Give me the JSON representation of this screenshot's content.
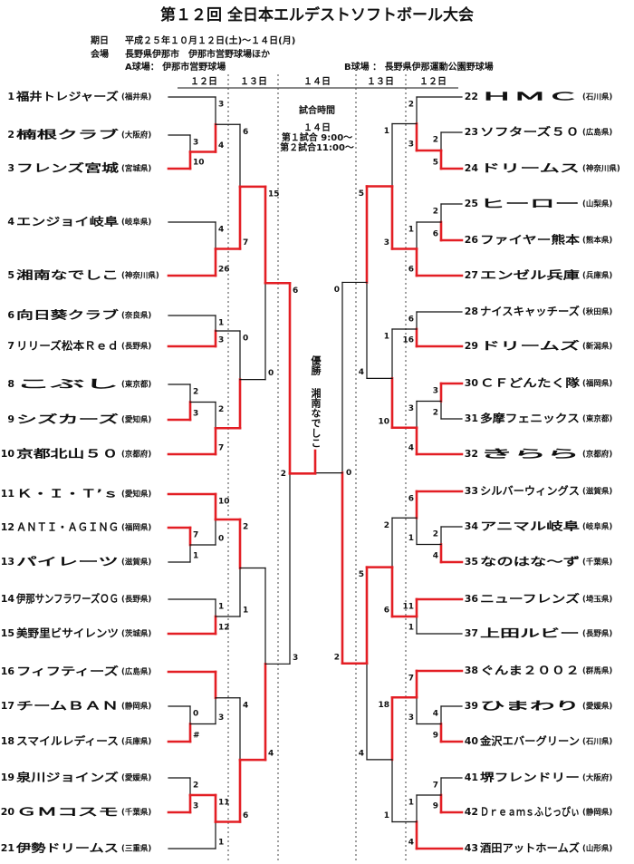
{
  "title": "第１２回 全日本エルデストソフトボール大会",
  "info": [
    {
      "label": "期日",
      "text": "平成２５年１０月１２日(土)～１４日(月)"
    },
    {
      "label": "会場",
      "text": "長野県伊那市　伊那市営野球場ほか"
    }
  ],
  "fields": [
    "A球場： 伊那市営野球場",
    "B球場 ： 長野県伊那運動公園野球場"
  ],
  "headers": [
    "１２日",
    "１３日",
    "１４日",
    "１３日",
    "１２日"
  ],
  "schedule": [
    "試合時間",
    "１４日",
    "第１試合 9:00～",
    "第２試合11:00～"
  ],
  "champion": {
    "label": "優勝",
    "team": "湘南なでしこ"
  },
  "teams": [
    {
      "no": 1,
      "name": "福井トレジャーズ",
      "pref": "(福井県)"
    },
    {
      "no": 2,
      "name": "楠根クラブ",
      "pref": "(大阪府)"
    },
    {
      "no": 3,
      "name": "フレンズ宮城",
      "pref": "(宮城県)"
    },
    {
      "no": 4,
      "name": "エンジョイ岐阜",
      "pref": "(岐阜県)"
    },
    {
      "no": 5,
      "name": "湘南なでしこ",
      "pref": "(神奈川県)"
    },
    {
      "no": 6,
      "name": "向日葵クラブ",
      "pref": "(奈良県)"
    },
    {
      "no": 7,
      "name": "リリーズ松本Ｒｅｄ",
      "pref": "(長野県)"
    },
    {
      "no": 8,
      "name": "こぶし",
      "pref": "(東京都)"
    },
    {
      "no": 9,
      "name": "シズカーズ",
      "pref": "(愛知県)"
    },
    {
      "no": 10,
      "name": "京都北山５０",
      "pref": "(京都府)"
    },
    {
      "no": 11,
      "name": "Ｋ・Ｉ・Ｔ’ｓ",
      "pref": "(愛知県)"
    },
    {
      "no": 12,
      "name": "ＡＮＴＩ・ＡＧＩＮＧ",
      "pref": "(福岡県)"
    },
    {
      "no": 13,
      "name": "パイレーツ",
      "pref": "(滋賀県)"
    },
    {
      "no": 14,
      "name": "伊那サンフラワーズＯＧ",
      "pref": "(長野県)"
    },
    {
      "no": 15,
      "name": "美野里ビサイレンツ",
      "pref": "(茨城県)"
    },
    {
      "no": 16,
      "name": "フィフティーズ",
      "pref": "(広島県)"
    },
    {
      "no": 17,
      "name": "チームＢＡＮ",
      "pref": "(静岡県)"
    },
    {
      "no": 18,
      "name": "スマイルレディース",
      "pref": "(兵庫県)"
    },
    {
      "no": 19,
      "name": "泉川ジョインズ",
      "pref": "(愛媛県)"
    },
    {
      "no": 20,
      "name": "ＧＭコスモ",
      "pref": "(千葉県)"
    },
    {
      "no": 21,
      "name": "伊勢ドリームス",
      "pref": "(三重県)"
    },
    {
      "no": 22,
      "name": "ＨＭＣ",
      "pref": "(石川県)"
    },
    {
      "no": 23,
      "name": "ソフターズ５０",
      "pref": "(広島県)"
    },
    {
      "no": 24,
      "name": "ドリームス",
      "pref": "(神奈川県)"
    },
    {
      "no": 25,
      "name": "ヒーロー",
      "pref": "(山梨県)"
    },
    {
      "no": 26,
      "name": "ファイヤー熊本",
      "pref": "(熊本県)"
    },
    {
      "no": 27,
      "name": "エンゼル兵庫",
      "pref": "(兵庫県)"
    },
    {
      "no": 28,
      "name": "ナイスキャッチーズ",
      "pref": "(秋田県)"
    },
    {
      "no": 29,
      "name": "ドリームズ",
      "pref": "(新潟県)"
    },
    {
      "no": 30,
      "name": "ＣＦどんたく隊",
      "pref": "(福岡県)"
    },
    {
      "no": 31,
      "name": "多摩フェニックス",
      "pref": "(東京都)"
    },
    {
      "no": 32,
      "name": "きらら",
      "pref": "(京都府)"
    },
    {
      "no": 33,
      "name": "シルバーウィングス",
      "pref": "(滋賀県)"
    },
    {
      "no": 34,
      "name": "アニマル岐阜",
      "pref": "(岐阜県)"
    },
    {
      "no": 35,
      "name": "なのはな～ず",
      "pref": "(千葉県)"
    },
    {
      "no": 36,
      "name": "ニューフレンズ",
      "pref": "(埼玉県)"
    },
    {
      "no": 37,
      "name": "上田ルビー",
      "pref": "(長野県)"
    },
    {
      "no": 38,
      "name": "ぐんま２００２",
      "pref": "(群馬県)"
    },
    {
      "no": 39,
      "name": "ひまわり",
      "pref": "(愛媛県)"
    },
    {
      "no": 40,
      "name": "金沢エバーグリーン",
      "pref": "(石川県)"
    },
    {
      "no": 41,
      "name": "堺フレンドリー",
      "pref": "(大阪府)"
    },
    {
      "no": 42,
      "name": "Ｄｒｅａｍｓふじっぴぃ",
      "pref": "(静岡県)"
    },
    {
      "no": 43,
      "name": "酒田アットホームズ",
      "pref": "(山形県)"
    }
  ],
  "scores": [
    3,
    10,
    3,
    4,
    4,
    26,
    6,
    7,
    1,
    3,
    2,
    3,
    2,
    7,
    0,
    15,
    0,
    7,
    1,
    10,
    0,
    1,
    12,
    2,
    1,
    0,
    "#",
    3,
    2,
    3,
    11,
    1,
    4,
    6,
    4,
    6,
    3,
    2,
    2,
    5,
    2,
    3,
    2,
    6,
    1,
    6,
    1,
    3,
    6,
    16,
    3,
    2,
    3,
    4,
    1,
    10,
    5,
    4,
    2,
    4,
    6,
    1,
    11,
    1,
    2,
    6,
    4,
    9,
    7,
    3,
    7,
    9,
    1,
    4,
    18,
    1,
    5,
    4,
    0,
    2,
    0
  ]
}
